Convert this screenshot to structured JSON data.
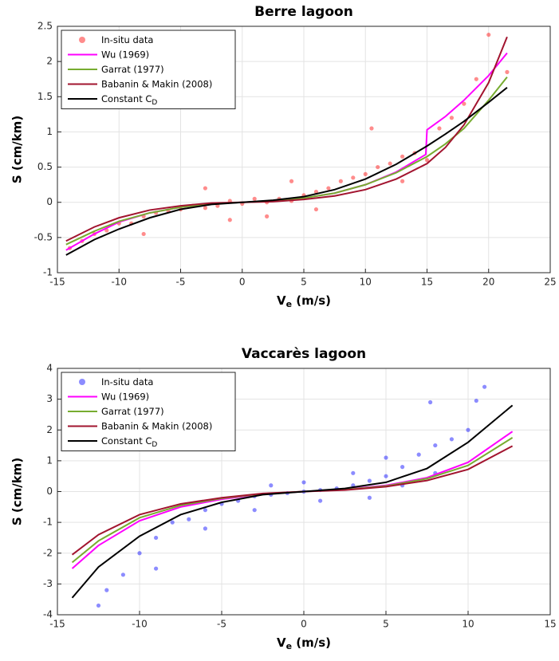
{
  "chart_data": [
    {
      "type": "scatter",
      "title": "Berre lagoon",
      "xlabel": "V",
      "xlabel_sub": "e",
      "xlabel_rest": " (m/s)",
      "ylabel": "S (cm/km)",
      "xlim": [
        -15,
        25
      ],
      "xticks": [
        -15,
        -10,
        -5,
        0,
        5,
        10,
        15,
        20,
        25
      ],
      "ylim": [
        -1,
        2.5
      ],
      "yticks": [
        -1,
        -0.5,
        0,
        0.5,
        1,
        1.5,
        2,
        2.5
      ],
      "grid": true,
      "legend": "upper left",
      "series": [
        {
          "name": "In-situ data",
          "type": "scatter",
          "color": "#ff0000",
          "x": [
            -14,
            -13,
            -12,
            -11,
            -10,
            -9,
            -8,
            -7,
            -6,
            -5,
            -4,
            -3,
            -2,
            -1,
            0,
            1,
            2,
            3,
            4,
            5,
            6,
            7,
            8,
            9,
            10,
            11,
            12,
            13,
            14,
            15,
            16,
            17,
            18,
            19,
            20,
            21.5,
            10.5,
            -3,
            -8,
            6,
            2,
            -1,
            13,
            4
          ],
          "values": [
            -0.65,
            -0.55,
            -0.45,
            -0.4,
            -0.3,
            -0.3,
            -0.2,
            -0.15,
            -0.12,
            -0.1,
            -0.05,
            -0.08,
            -0.05,
            0.02,
            -0.02,
            0.05,
            0,
            0.05,
            0.02,
            0.1,
            0.15,
            0.2,
            0.3,
            0.35,
            0.4,
            0.5,
            0.55,
            0.65,
            0.7,
            0.6,
            1.05,
            1.2,
            1.4,
            1.75,
            2.38,
            1.85,
            1.05,
            0.2,
            -0.45,
            -0.1,
            -0.2,
            -0.25,
            0.3,
            0.3
          ]
        },
        {
          "name": "Wu (1969)",
          "type": "line",
          "color": "#ff00ff",
          "x": [
            -14.3,
            -12,
            -10,
            -7.5,
            -5,
            -2.5,
            0,
            2.5,
            5,
            7.5,
            10,
            12.5,
            14.9,
            15,
            16.5,
            18,
            20,
            21.5
          ],
          "values": [
            -0.68,
            -0.45,
            -0.28,
            -0.15,
            -0.07,
            -0.02,
            0,
            0.02,
            0.06,
            0.13,
            0.25,
            0.43,
            0.68,
            1.03,
            1.22,
            1.45,
            1.8,
            2.12
          ]
        },
        {
          "name": "Garrat (1977)",
          "type": "line",
          "color": "#77ac30",
          "x": [
            -14.3,
            -12,
            -10,
            -7.5,
            -5,
            -2.5,
            0,
            2.5,
            5,
            7.5,
            10,
            12.5,
            15,
            16.5,
            18,
            20,
            21.5
          ],
          "values": [
            -0.6,
            -0.41,
            -0.27,
            -0.15,
            -0.07,
            -0.02,
            0,
            0.02,
            0.06,
            0.13,
            0.25,
            0.42,
            0.65,
            0.83,
            1.05,
            1.45,
            1.78
          ]
        },
        {
          "name": "Babanin & Makin (2008)",
          "type": "line",
          "color": "#a2142f",
          "x": [
            -14.3,
            -12,
            -10,
            -7.5,
            -5,
            -2.5,
            0,
            2.5,
            5,
            7.5,
            10,
            12.5,
            15,
            16.5,
            18,
            20,
            21.5
          ],
          "values": [
            -0.55,
            -0.35,
            -0.22,
            -0.11,
            -0.05,
            -0.01,
            0,
            0.01,
            0.04,
            0.09,
            0.18,
            0.33,
            0.55,
            0.78,
            1.1,
            1.7,
            2.35
          ]
        },
        {
          "name": "Constant C",
          "name_sub": "D",
          "type": "line",
          "color": "#000000",
          "x": [
            -14.3,
            -12,
            -10,
            -7.5,
            -5,
            -2.5,
            0,
            2.5,
            5,
            7.5,
            10,
            12.5,
            15,
            16.5,
            18,
            20,
            21.5
          ],
          "values": [
            -0.75,
            -0.53,
            -0.38,
            -0.22,
            -0.1,
            -0.03,
            0,
            0.03,
            0.08,
            0.18,
            0.33,
            0.54,
            0.8,
            0.97,
            1.15,
            1.42,
            1.63
          ]
        }
      ]
    },
    {
      "type": "scatter",
      "title": "Vaccarès lagoon",
      "xlabel": "V",
      "xlabel_sub": "e",
      "xlabel_rest": " (m/s)",
      "ylabel": "S (cm/km)",
      "xlim": [
        -15,
        15
      ],
      "xticks": [
        -15,
        -10,
        -5,
        0,
        5,
        10,
        15
      ],
      "ylim": [
        -4,
        4
      ],
      "yticks": [
        -4,
        -3,
        -2,
        -1,
        0,
        1,
        2,
        3,
        4
      ],
      "grid": true,
      "legend": "upper left",
      "series": [
        {
          "name": "In-situ data",
          "type": "scatter",
          "color": "#0000ff",
          "x": [
            -12.5,
            -12,
            -11,
            -10,
            -9,
            -8,
            -7,
            -6,
            -5,
            -4,
            -3,
            -2,
            -1,
            0,
            1,
            2,
            3,
            4,
            5,
            6,
            7,
            7.7,
            8,
            9,
            10,
            10.5,
            11,
            -9,
            -6,
            3,
            5,
            4,
            -3,
            1,
            6,
            8,
            -2,
            0
          ],
          "values": [
            -3.7,
            -3.2,
            -2.7,
            -2,
            -1.5,
            -1,
            -0.9,
            -0.6,
            -0.4,
            -0.3,
            -0.15,
            -0.1,
            -0.05,
            0,
            0.05,
            0.1,
            0.2,
            0.35,
            0.5,
            0.8,
            1.2,
            2.9,
            1.5,
            1.7,
            2,
            2.95,
            3.4,
            -2.5,
            -1.2,
            0.6,
            1.1,
            -0.2,
            -0.6,
            -0.3,
            0.2,
            0.6,
            0.2,
            0.3
          ]
        },
        {
          "name": "Wu (1969)",
          "type": "line",
          "color": "#ff00ff",
          "x": [
            -14.1,
            -12.5,
            -10,
            -7.5,
            -5,
            -2.5,
            0,
            2.5,
            5,
            7.5,
            10,
            12.7
          ],
          "values": [
            -2.5,
            -1.75,
            -0.95,
            -0.5,
            -0.25,
            -0.08,
            0,
            0.07,
            0.2,
            0.45,
            0.95,
            1.95
          ]
        },
        {
          "name": "Garrat (1977)",
          "type": "line",
          "color": "#77ac30",
          "x": [
            -14.1,
            -12.5,
            -10,
            -7.5,
            -5,
            -2.5,
            0,
            2.5,
            5,
            7.5,
            10,
            12.7
          ],
          "values": [
            -2.3,
            -1.6,
            -0.85,
            -0.45,
            -0.22,
            -0.07,
            0,
            0.06,
            0.18,
            0.42,
            0.85,
            1.75
          ]
        },
        {
          "name": "Babanin & Makin (2008)",
          "type": "line",
          "color": "#a2142f",
          "x": [
            -14.1,
            -12.5,
            -10,
            -7.5,
            -5,
            -2.5,
            0,
            2.5,
            5,
            7.5,
            10,
            12.7
          ],
          "values": [
            -2.05,
            -1.4,
            -0.75,
            -0.4,
            -0.2,
            -0.06,
            0,
            0.05,
            0.16,
            0.36,
            0.72,
            1.48
          ]
        },
        {
          "name": "Constant C",
          "name_sub": "D",
          "type": "line",
          "color": "#000000",
          "x": [
            -14.1,
            -12.5,
            -10,
            -7.5,
            -5,
            -2.5,
            0,
            2.5,
            5,
            7.5,
            10,
            12.7
          ],
          "values": [
            -3.45,
            -2.45,
            -1.45,
            -0.75,
            -0.35,
            -0.1,
            0,
            0.1,
            0.3,
            0.75,
            1.6,
            2.8
          ]
        }
      ]
    }
  ]
}
